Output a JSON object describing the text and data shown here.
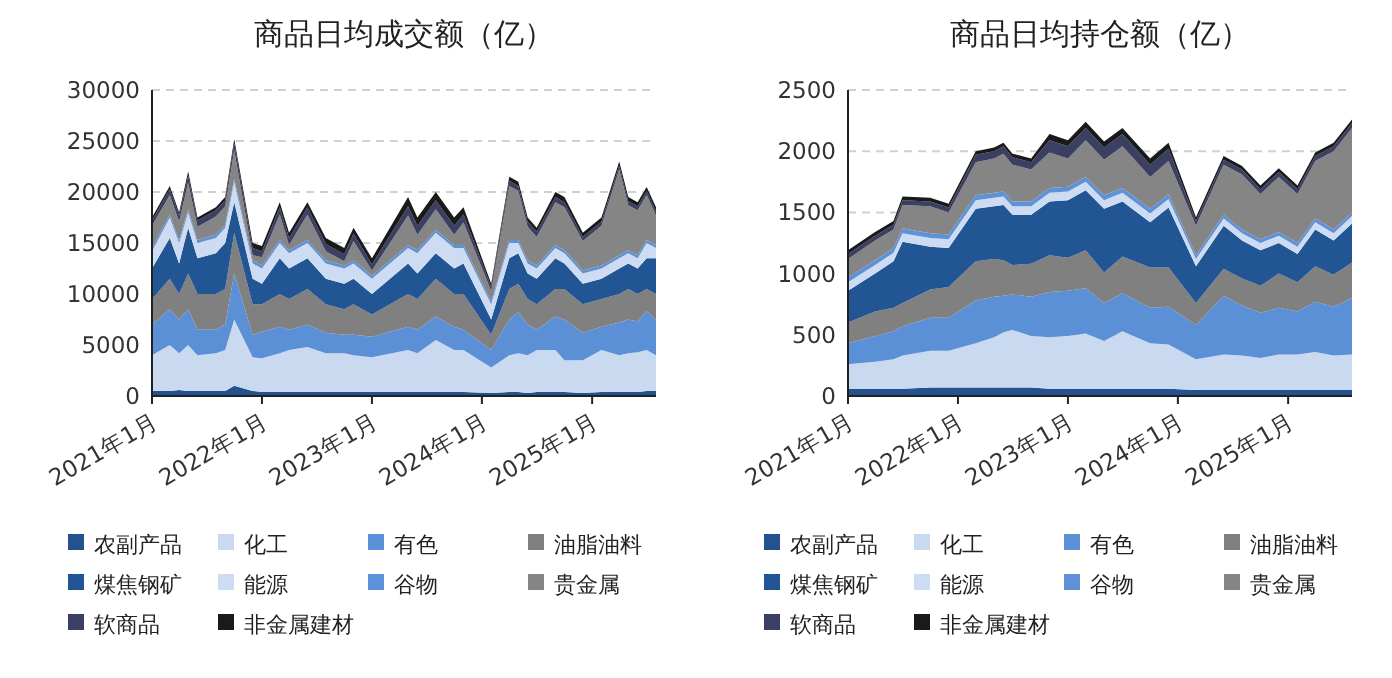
{
  "chart_data": [
    {
      "type": "area",
      "stacked": true,
      "title": "商品日均成交额（亿）",
      "grid": "y",
      "legend": "bottom",
      "x": [
        "2021-01",
        "2021-03",
        "2021-04",
        "2021-05",
        "2021-06",
        "2021-08",
        "2021-09",
        "2021-10",
        "2021-12",
        "2022-01",
        "2022-03",
        "2022-04",
        "2022-06",
        "2022-08",
        "2022-10",
        "2022-11",
        "2023-01",
        "2023-05",
        "2023-06",
        "2023-08",
        "2023-10",
        "2023-11",
        "2024-02",
        "2024-04",
        "2024-05",
        "2024-06",
        "2024-07",
        "2024-09",
        "2024-10",
        "2024-12",
        "2025-02",
        "2025-04",
        "2025-05",
        "2025-06",
        "2025-07",
        "2025-08"
      ],
      "xlim": [
        "2021-01",
        "2025-08"
      ],
      "xticks": [
        {
          "value": "2021-01",
          "label": "2021年1月"
        },
        {
          "value": "2022-01",
          "label": "2022年1月"
        },
        {
          "value": "2023-01",
          "label": "2023年1月"
        },
        {
          "value": "2024-01",
          "label": "2024年1月"
        },
        {
          "value": "2025-01",
          "label": "2025年1月"
        }
      ],
      "ylim": [
        0,
        30000
      ],
      "yticks": [
        0,
        5000,
        10000,
        15000,
        20000,
        25000,
        30000
      ],
      "series": [
        {
          "name": "农副产品",
          "color": "#24528f",
          "values": [
            500,
            500,
            600,
            500,
            500,
            500,
            500,
            1000,
            500,
            400,
            400,
            400,
            400,
            400,
            400,
            400,
            400,
            400,
            400,
            400,
            400,
            400,
            300,
            400,
            400,
            300,
            400,
            400,
            400,
            300,
            400,
            400,
            400,
            400,
            500,
            500
          ]
        },
        {
          "name": "化工",
          "color": "#c9d9f0",
          "values": [
            3500,
            4500,
            3600,
            4500,
            3500,
            3700,
            4000,
            6500,
            3300,
            3300,
            3800,
            4100,
            4400,
            3800,
            3800,
            3600,
            3400,
            4100,
            3800,
            5100,
            4100,
            4100,
            2500,
            3600,
            3800,
            3700,
            4100,
            4100,
            3100,
            3200,
            4100,
            3600,
            3800,
            3900,
            4000,
            3500
          ]
        },
        {
          "name": "有色",
          "color": "#5b8fd6",
          "values": [
            3000,
            3500,
            3300,
            3500,
            2500,
            2300,
            2500,
            4500,
            2200,
            2600,
            2600,
            2000,
            2200,
            2000,
            1800,
            2000,
            2000,
            2300,
            2300,
            2300,
            2300,
            2000,
            1700,
            3500,
            4000,
            3000,
            2000,
            3300,
            4000,
            2700,
            2300,
            3200,
            3300,
            3000,
            3800,
            3500
          ]
        },
        {
          "name": "油脂油料",
          "color": "#808080",
          "values": [
            2500,
            3000,
            2500,
            3500,
            3500,
            3500,
            3500,
            4000,
            3000,
            2700,
            3200,
            3000,
            3500,
            2800,
            2500,
            3000,
            2200,
            3200,
            3000,
            3700,
            3200,
            3500,
            1500,
            3000,
            2800,
            2500,
            2500,
            2700,
            3000,
            2800,
            2700,
            2800,
            3000,
            2700,
            2200,
            2500
          ]
        },
        {
          "name": "煤焦钢矿",
          "color": "#215593",
          "values": [
            3000,
            4000,
            3000,
            4500,
            3500,
            4000,
            4500,
            3000,
            2500,
            2000,
            3500,
            3000,
            3000,
            2500,
            2500,
            2500,
            2000,
            3000,
            2500,
            2500,
            2500,
            3000,
            1500,
            3000,
            3000,
            2500,
            2500,
            3000,
            2500,
            2000,
            2000,
            2500,
            2500,
            2500,
            3000,
            3500
          ]
        },
        {
          "name": "能源",
          "color": "#cddcf2",
          "values": [
            1700,
            2000,
            2000,
            1500,
            1500,
            1500,
            1500,
            2000,
            1500,
            1500,
            1500,
            1500,
            1500,
            1500,
            1500,
            1500,
            1500,
            1500,
            2000,
            2000,
            2000,
            1500,
            1500,
            1500,
            1000,
            1000,
            1000,
            1000,
            1000,
            1000,
            1000,
            1000,
            1000,
            1000,
            1500,
            1000
          ]
        },
        {
          "name": "谷物",
          "color": "#5e92d8",
          "values": [
            300,
            300,
            300,
            300,
            300,
            300,
            300,
            300,
            300,
            300,
            300,
            300,
            300,
            300,
            300,
            300,
            300,
            300,
            300,
            300,
            300,
            300,
            300,
            300,
            300,
            300,
            300,
            300,
            300,
            300,
            300,
            300,
            300,
            300,
            300,
            300
          ]
        },
        {
          "name": "贵金属",
          "color": "#858585",
          "values": [
            2200,
            1900,
            1800,
            2600,
            1300,
            1800,
            1800,
            2800,
            500,
            800,
            2500,
            500,
            2500,
            900,
            400,
            1900,
            500,
            2900,
            1500,
            2000,
            1000,
            2200,
            1000,
            5300,
            4800,
            3300,
            2800,
            4200,
            4200,
            2900,
            3900,
            8400,
            4400,
            4400,
            4400,
            2900
          ]
        },
        {
          "name": "软商品",
          "color": "#3b3f62",
          "values": [
            500,
            600,
            600,
            700,
            600,
            600,
            600,
            700,
            700,
            600,
            700,
            700,
            700,
            700,
            700,
            700,
            600,
            900,
            900,
            900,
            900,
            800,
            400,
            500,
            500,
            500,
            500,
            500,
            500,
            400,
            400,
            400,
            400,
            400,
            400,
            400
          ]
        },
        {
          "name": "非金属建材",
          "color": "#1a1a1a",
          "values": [
            300,
            300,
            300,
            400,
            300,
            300,
            300,
            400,
            500,
            500,
            500,
            500,
            500,
            600,
            600,
            600,
            600,
            900,
            800,
            800,
            800,
            700,
            300,
            400,
            400,
            400,
            400,
            500,
            500,
            400,
            400,
            400,
            400,
            400,
            400,
            400
          ]
        }
      ]
    },
    {
      "type": "area",
      "stacked": true,
      "title": "商品日均持仓额（亿）",
      "grid": "y",
      "legend": "bottom",
      "x": [
        "2021-01",
        "2021-04",
        "2021-06",
        "2021-07",
        "2021-10",
        "2021-12",
        "2022-03",
        "2022-05",
        "2022-06",
        "2022-07",
        "2022-09",
        "2022-11",
        "2023-01",
        "2023-03",
        "2023-05",
        "2023-07",
        "2023-10",
        "2023-12",
        "2024-03",
        "2024-06",
        "2024-08",
        "2024-10",
        "2024-12",
        "2025-02",
        "2025-04",
        "2025-06",
        "2025-08"
      ],
      "xlim": [
        "2021-01",
        "2025-08"
      ],
      "xticks": [
        {
          "value": "2021-01",
          "label": "2021年1月"
        },
        {
          "value": "2022-01",
          "label": "2022年1月"
        },
        {
          "value": "2023-01",
          "label": "2023年1月"
        },
        {
          "value": "2024-01",
          "label": "2024年1月"
        },
        {
          "value": "2025-01",
          "label": "2025年1月"
        }
      ],
      "ylim": [
        0,
        2500
      ],
      "yticks": [
        0,
        500,
        1000,
        1500,
        2000,
        2500
      ],
      "series": [
        {
          "name": "农副产品",
          "color": "#24528f",
          "values": [
            60,
            60,
            60,
            60,
            70,
            70,
            70,
            70,
            70,
            70,
            70,
            60,
            60,
            60,
            60,
            60,
            60,
            60,
            50,
            50,
            50,
            50,
            50,
            50,
            50,
            50,
            50
          ]
        },
        {
          "name": "化工",
          "color": "#c9d9f0",
          "values": [
            200,
            220,
            240,
            270,
            300,
            300,
            360,
            410,
            450,
            470,
            420,
            420,
            430,
            450,
            390,
            470,
            370,
            360,
            250,
            290,
            280,
            260,
            290,
            290,
            310,
            280,
            290
          ]
        },
        {
          "name": "有色",
          "color": "#5b8fd6",
          "values": [
            170,
            210,
            230,
            240,
            270,
            270,
            350,
            330,
            300,
            290,
            320,
            370,
            370,
            370,
            310,
            310,
            290,
            310,
            280,
            480,
            410,
            370,
            380,
            350,
            410,
            400,
            460
          ]
        },
        {
          "name": "油脂油料",
          "color": "#808080",
          "values": [
            170,
            200,
            190,
            190,
            230,
            250,
            320,
            310,
            290,
            240,
            270,
            300,
            270,
            310,
            250,
            300,
            330,
            320,
            180,
            220,
            220,
            220,
            280,
            240,
            290,
            260,
            290
          ]
        },
        {
          "name": "煤焦钢矿",
          "color": "#215593",
          "values": [
            260,
            310,
            380,
            500,
            350,
            320,
            430,
            430,
            450,
            410,
            400,
            440,
            470,
            490,
            520,
            450,
            370,
            490,
            300,
            350,
            310,
            290,
            250,
            230,
            300,
            280,
            320
          ]
        },
        {
          "name": "能源",
          "color": "#cddcf2",
          "values": [
            70,
            70,
            70,
            70,
            70,
            70,
            70,
            70,
            70,
            70,
            70,
            70,
            70,
            70,
            70,
            70,
            70,
            70,
            60,
            60,
            60,
            60,
            60,
            60,
            60,
            60,
            60
          ]
        },
        {
          "name": "谷物",
          "color": "#5e92d8",
          "values": [
            40,
            40,
            40,
            40,
            40,
            40,
            40,
            40,
            40,
            40,
            40,
            40,
            40,
            40,
            40,
            40,
            40,
            40,
            30,
            30,
            30,
            30,
            30,
            30,
            30,
            30,
            30
          ]
        },
        {
          "name": "贵金属",
          "color": "#858585",
          "values": [
            150,
            160,
            150,
            190,
            220,
            180,
            270,
            280,
            310,
            300,
            260,
            290,
            230,
            300,
            290,
            340,
            260,
            270,
            240,
            410,
            450,
            370,
            450,
            400,
            470,
            640,
            690
          ]
        },
        {
          "name": "软商品",
          "color": "#3b3f62",
          "values": [
            40,
            40,
            40,
            40,
            40,
            40,
            60,
            60,
            60,
            60,
            60,
            100,
            100,
            100,
            100,
            100,
            100,
            100,
            40,
            40,
            40,
            40,
            40,
            40,
            40,
            40,
            40
          ]
        },
        {
          "name": "非金属建材",
          "color": "#1a1a1a",
          "values": [
            30,
            30,
            30,
            30,
            30,
            30,
            30,
            30,
            30,
            30,
            30,
            50,
            50,
            50,
            50,
            50,
            50,
            50,
            30,
            30,
            30,
            30,
            30,
            30,
            30,
            30,
            30
          ]
        }
      ]
    }
  ]
}
